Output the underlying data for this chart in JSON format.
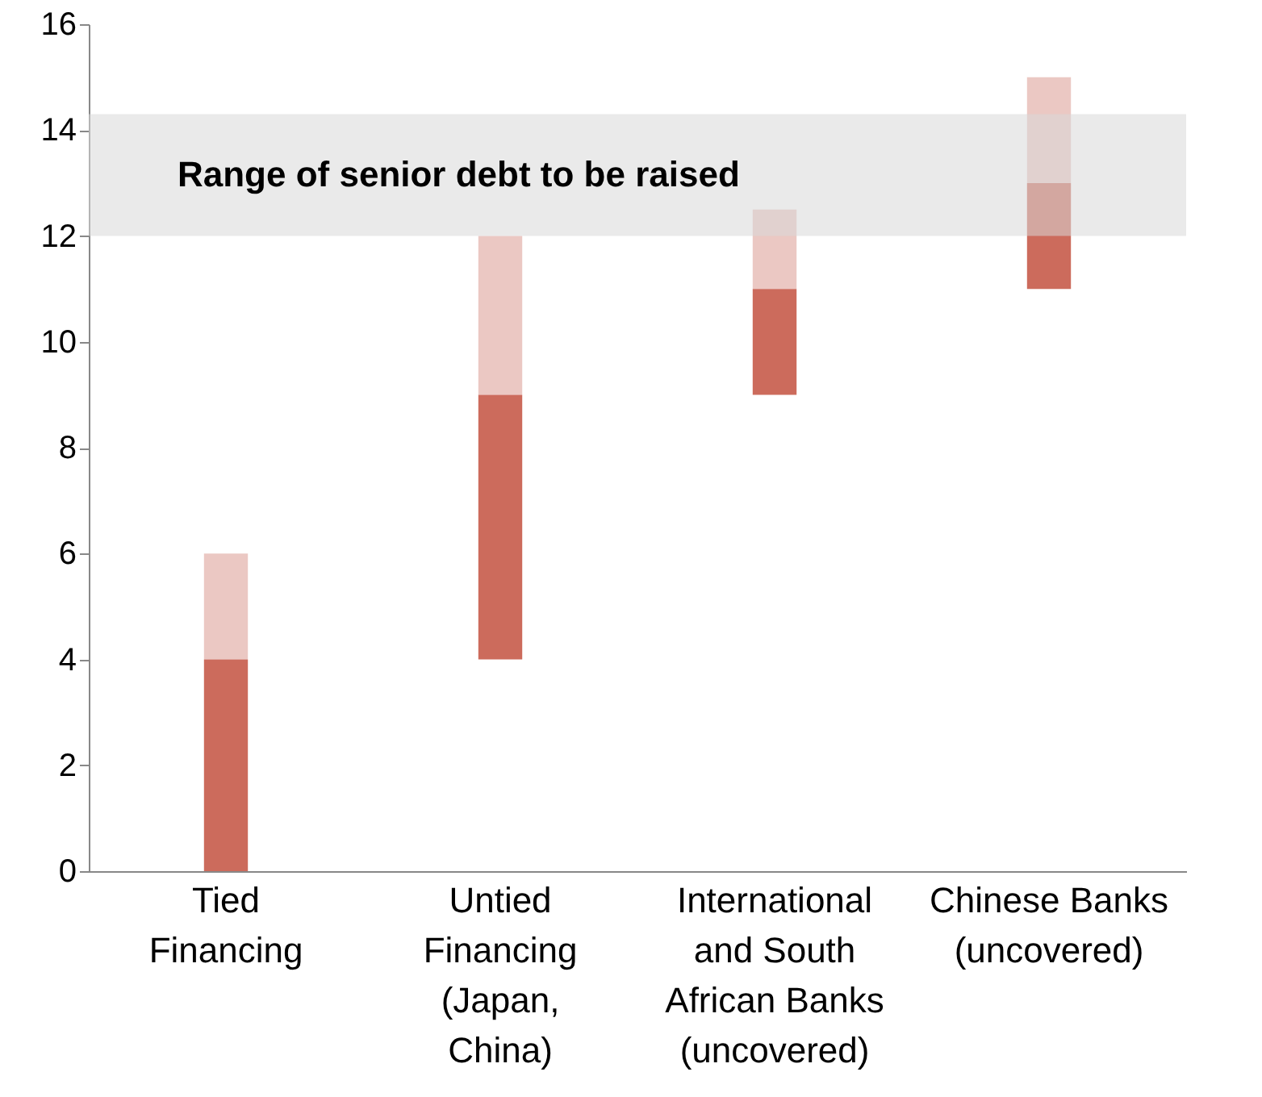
{
  "chart_data": {
    "type": "bar",
    "categories": [
      "Tied Financing",
      "Untied Financing (Japan, China)",
      "International and South African Banks (uncovered)",
      "Chinese Banks (uncovered)"
    ],
    "series": [
      {
        "color": "#cc6b5c",
        "base": [
          0,
          4,
          9,
          11
        ],
        "values": [
          4,
          5,
          2,
          2
        ]
      },
      {
        "color": "#ebc8c3",
        "base": [
          4,
          9,
          11,
          13
        ],
        "values": [
          2,
          3,
          1.5,
          2
        ]
      }
    ],
    "ylim": [
      0,
      16
    ],
    "yticks": [
      0,
      2,
      4,
      6,
      8,
      10,
      12,
      14,
      16
    ],
    "bands": [
      {
        "axis": "y",
        "from": 12,
        "to": 14.3,
        "label": "Range of senior debt to be raised",
        "color": "#d9d9d9"
      }
    ],
    "grid": false,
    "legend": false
  }
}
